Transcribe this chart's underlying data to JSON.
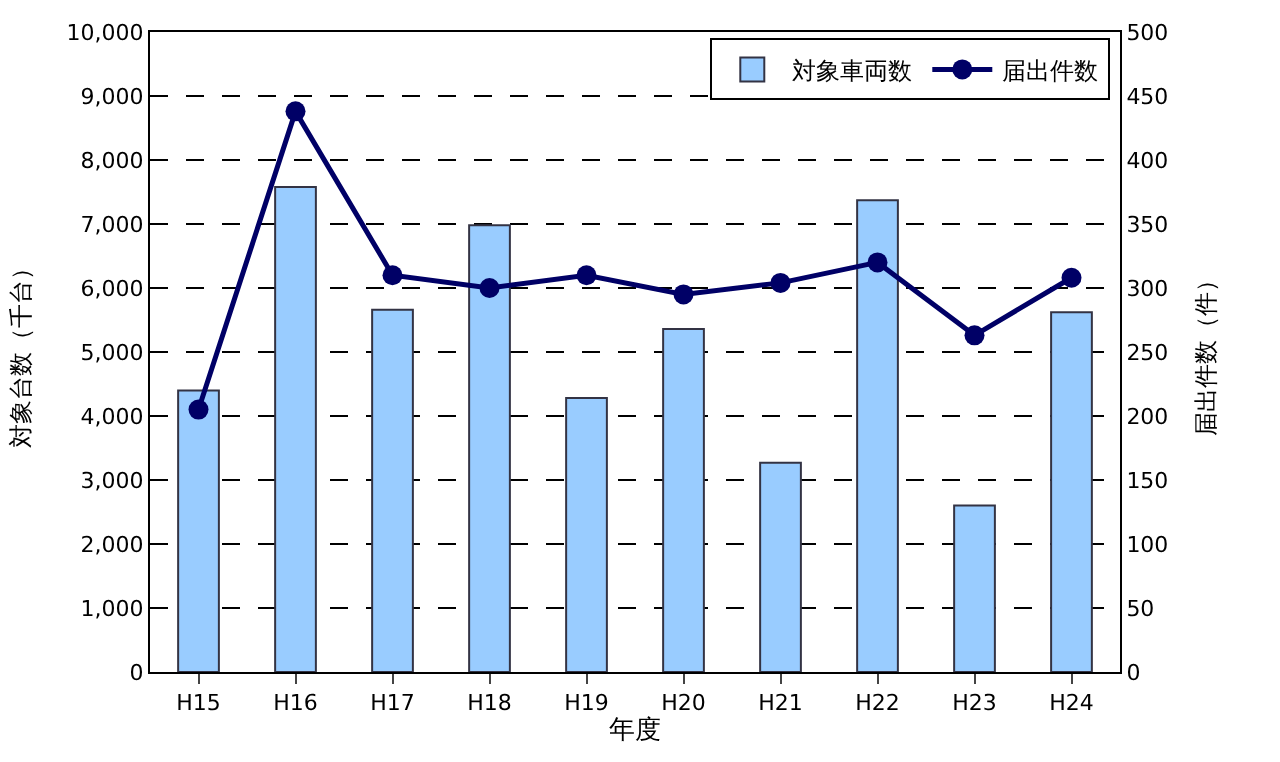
{
  "chart_data": {
    "type": "bar",
    "xlabel": "年度",
    "ylabel": "対象台数（千台）",
    "y2label": "届出件数（件）",
    "categories": [
      "H15",
      "H16",
      "H17",
      "H18",
      "H19",
      "H20",
      "H21",
      "H22",
      "H23",
      "H24"
    ],
    "series": [
      {
        "name": "対象車両数",
        "color": "#99ccff",
        "values": [
          4400,
          7580,
          5660,
          6980,
          4280,
          5360,
          3270,
          7370,
          2600,
          5620
        ]
      },
      {
        "name": "届出件数",
        "type": "line",
        "axis": "y2",
        "color": "#000066",
        "marker": "circle",
        "values": [
          205,
          438,
          310,
          300,
          310,
          295,
          304,
          320,
          263,
          308
        ]
      }
    ],
    "ylim": [
      0,
      10000
    ],
    "yticks": [
      {
        "value": 0,
        "label": "0"
      },
      {
        "value": 1000,
        "label": "1,000"
      },
      {
        "value": 2000,
        "label": "2,000"
      },
      {
        "value": 3000,
        "label": "3,000"
      },
      {
        "value": 4000,
        "label": "4,000"
      },
      {
        "value": 5000,
        "label": "5,000"
      },
      {
        "value": 6000,
        "label": "6,000"
      },
      {
        "value": 7000,
        "label": "7,000"
      },
      {
        "value": 8000,
        "label": "8,000"
      },
      {
        "value": 9000,
        "label": "9,000"
      },
      {
        "value": 10000,
        "label": "10,000"
      }
    ],
    "y2lim": [
      0,
      500
    ],
    "y2ticks": [
      0,
      50,
      100,
      150,
      200,
      250,
      300,
      350,
      400,
      450,
      500
    ],
    "grid": "y",
    "legend": "top right"
  }
}
